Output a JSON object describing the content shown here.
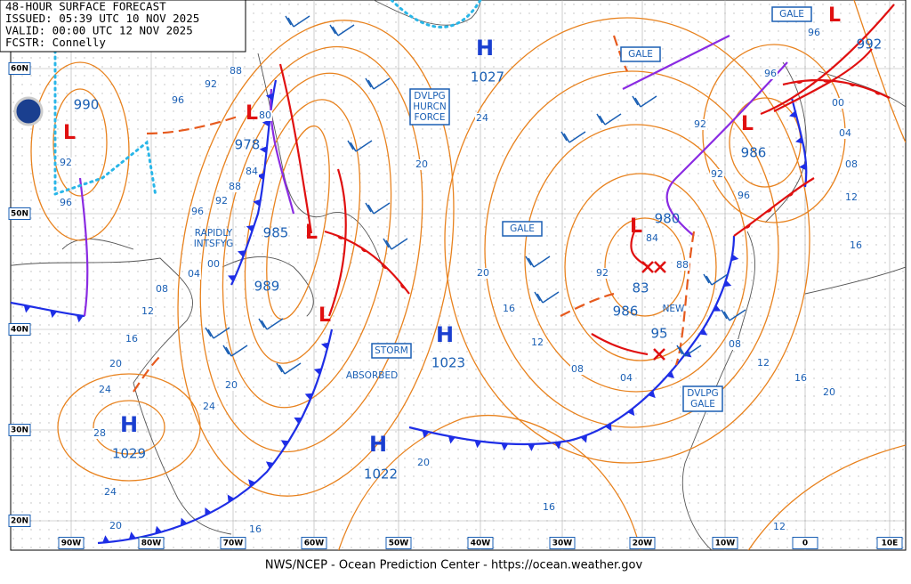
{
  "header": {
    "lines": [
      "48-HOUR SURFACE FORECAST",
      "ISSUED: 05:39 UTC 10 NOV 2025",
      "VALID:  00:00 UTC 12 NOV 2025",
      "FCSTR:  Connelly"
    ]
  },
  "latitude_labels": [
    "60N",
    "50N",
    "40N",
    "30N",
    "20N"
  ],
  "longitude_labels": [
    "90W",
    "80W",
    "70W",
    "60W",
    "50W",
    "40W",
    "30W",
    "20W",
    "10W",
    "0",
    "10E"
  ],
  "highs": [
    {
      "symbol": "H",
      "pressure": "1027"
    },
    {
      "symbol": "H",
      "pressure": "1023"
    },
    {
      "symbol": "H",
      "pressure": "1022"
    },
    {
      "symbol": "H",
      "pressure": "1029"
    }
  ],
  "lows": [
    {
      "symbol": "L",
      "pressure": "990"
    },
    {
      "symbol": "L",
      "pressure": "978"
    },
    {
      "symbol": "L",
      "pressure": "985"
    },
    {
      "symbol": "L",
      "pressure": "989"
    },
    {
      "symbol": "L",
      "pressure": "980"
    },
    {
      "symbol": "L",
      "pressure": "986"
    },
    {
      "symbol": "L",
      "pressure": "992"
    }
  ],
  "forecast_positions": [
    "83",
    "986",
    "95"
  ],
  "warnings": [
    {
      "lines": [
        "GALE"
      ]
    },
    {
      "lines": [
        "GALE"
      ]
    },
    {
      "lines": [
        "GALE"
      ]
    },
    {
      "lines": [
        "DVLPG",
        "HURCN",
        "FORCE"
      ]
    },
    {
      "lines": [
        "STORM"
      ]
    },
    {
      "lines": [
        "DVLPG",
        "GALE"
      ]
    }
  ],
  "annotations": [
    {
      "lines": [
        "RAPIDLY",
        "INTSFYG"
      ]
    },
    {
      "lines": [
        "ABSORBED"
      ]
    },
    {
      "lines": [
        "NEW"
      ]
    }
  ],
  "isobar_labels": [
    "88",
    "92",
    "96",
    "92",
    "96",
    "80",
    "84",
    "88",
    "92",
    "96",
    "00",
    "04",
    "08",
    "12",
    "16",
    "20",
    "24",
    "28",
    "24",
    "20",
    "16",
    "20",
    "24",
    "20",
    "24",
    "20",
    "16",
    "12",
    "08",
    "04",
    "92",
    "84",
    "88",
    "92",
    "96",
    "00",
    "04",
    "08",
    "12",
    "16",
    "92",
    "96",
    "08",
    "12",
    "16",
    "20",
    "20",
    "16",
    "12",
    "96"
  ],
  "footer": "NWS/NCEP - Ocean Prediction Center - https://ocean.weather.gov"
}
